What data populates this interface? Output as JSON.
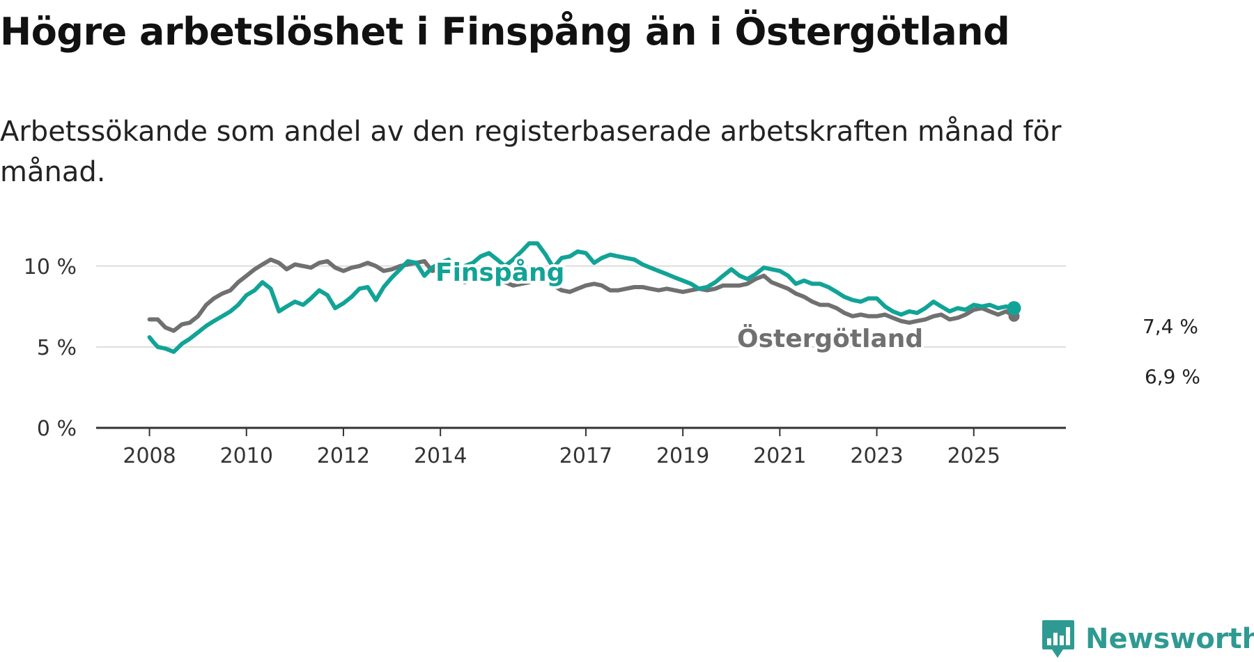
{
  "title": "Högre arbetslöshet i Finspång än i Östergötland",
  "subtitle": "Arbetssökande som andel av den registerbaserade arbetskraften månad för månad.",
  "brand": "Newsworthy",
  "colors": {
    "finspang": "#12a397",
    "ostergotland": "#707070",
    "grid": "#dddddd",
    "axis": "#333333",
    "brand": "#2f9a92"
  },
  "chart_data": {
    "type": "line",
    "title": "Högre arbetslöshet i Finspång än i Östergötland",
    "xlabel": "",
    "ylabel": "",
    "x_ticks": [
      {
        "value": 2008,
        "label": "2008"
      },
      {
        "value": 2010,
        "label": "2010"
      },
      {
        "value": 2012,
        "label": "2012"
      },
      {
        "value": 2014,
        "label": "2014"
      },
      {
        "value": 2017,
        "label": "2017"
      },
      {
        "value": 2019,
        "label": "2019"
      },
      {
        "value": 2021,
        "label": "2021"
      },
      {
        "value": 2023,
        "label": "2023"
      },
      {
        "value": 2025,
        "label": "2025"
      }
    ],
    "y_ticks": [
      {
        "value": 0,
        "label": "0 %"
      },
      {
        "value": 5,
        "label": "5 %"
      },
      {
        "value": 10,
        "label": "10 %"
      }
    ],
    "xlim": [
      2006.9,
      2026.9
    ],
    "ylim": [
      0,
      11.8
    ],
    "grid": true,
    "series": [
      {
        "name": "Östergötland",
        "key": "ostergotland",
        "points": [
          [
            2008.0,
            6.7
          ],
          [
            2008.17,
            6.7
          ],
          [
            2008.33,
            6.2
          ],
          [
            2008.5,
            6.0
          ],
          [
            2008.67,
            6.4
          ],
          [
            2008.83,
            6.5
          ],
          [
            2009.0,
            6.9
          ],
          [
            2009.17,
            7.6
          ],
          [
            2009.33,
            8.0
          ],
          [
            2009.5,
            8.3
          ],
          [
            2009.67,
            8.5
          ],
          [
            2009.83,
            9.0
          ],
          [
            2010.0,
            9.4
          ],
          [
            2010.17,
            9.8
          ],
          [
            2010.33,
            10.1
          ],
          [
            2010.5,
            10.4
          ],
          [
            2010.67,
            10.2
          ],
          [
            2010.83,
            9.8
          ],
          [
            2011.0,
            10.1
          ],
          [
            2011.17,
            10.0
          ],
          [
            2011.33,
            9.9
          ],
          [
            2011.5,
            10.2
          ],
          [
            2011.67,
            10.3
          ],
          [
            2011.83,
            9.9
          ],
          [
            2012.0,
            9.7
          ],
          [
            2012.17,
            9.9
          ],
          [
            2012.33,
            10.0
          ],
          [
            2012.5,
            10.2
          ],
          [
            2012.67,
            10.0
          ],
          [
            2012.83,
            9.7
          ],
          [
            2013.0,
            9.8
          ],
          [
            2013.17,
            10.0
          ],
          [
            2013.33,
            10.1
          ],
          [
            2013.5,
            10.2
          ],
          [
            2013.67,
            10.3
          ],
          [
            2013.83,
            9.7
          ],
          [
            2014.0,
            9.8
          ],
          [
            2014.17,
            9.9
          ],
          [
            2014.33,
            9.4
          ],
          [
            2014.5,
            9.0
          ],
          [
            2014.67,
            9.2
          ],
          [
            2014.83,
            9.3
          ],
          [
            2015.0,
            9.5
          ],
          [
            2015.17,
            9.3
          ],
          [
            2015.33,
            9.0
          ],
          [
            2015.5,
            8.8
          ],
          [
            2015.67,
            8.9
          ],
          [
            2015.83,
            9.0
          ],
          [
            2016.0,
            9.2
          ],
          [
            2016.17,
            9.3
          ],
          [
            2016.33,
            8.8
          ],
          [
            2016.5,
            8.5
          ],
          [
            2016.67,
            8.4
          ],
          [
            2016.83,
            8.6
          ],
          [
            2017.0,
            8.8
          ],
          [
            2017.17,
            8.9
          ],
          [
            2017.33,
            8.8
          ],
          [
            2017.5,
            8.5
          ],
          [
            2017.67,
            8.5
          ],
          [
            2017.83,
            8.6
          ],
          [
            2018.0,
            8.7
          ],
          [
            2018.17,
            8.7
          ],
          [
            2018.33,
            8.6
          ],
          [
            2018.5,
            8.5
          ],
          [
            2018.67,
            8.6
          ],
          [
            2018.83,
            8.5
          ],
          [
            2019.0,
            8.4
          ],
          [
            2019.17,
            8.5
          ],
          [
            2019.33,
            8.6
          ],
          [
            2019.5,
            8.5
          ],
          [
            2019.67,
            8.6
          ],
          [
            2019.83,
            8.8
          ],
          [
            2020.0,
            8.8
          ],
          [
            2020.17,
            8.8
          ],
          [
            2020.33,
            8.9
          ],
          [
            2020.5,
            9.2
          ],
          [
            2020.67,
            9.4
          ],
          [
            2020.83,
            9.0
          ],
          [
            2021.0,
            8.8
          ],
          [
            2021.17,
            8.6
          ],
          [
            2021.33,
            8.3
          ],
          [
            2021.5,
            8.1
          ],
          [
            2021.67,
            7.8
          ],
          [
            2021.83,
            7.6
          ],
          [
            2022.0,
            7.6
          ],
          [
            2022.17,
            7.4
          ],
          [
            2022.33,
            7.1
          ],
          [
            2022.5,
            6.9
          ],
          [
            2022.67,
            7.0
          ],
          [
            2022.83,
            6.9
          ],
          [
            2023.0,
            6.9
          ],
          [
            2023.17,
            7.0
          ],
          [
            2023.33,
            6.8
          ],
          [
            2023.5,
            6.6
          ],
          [
            2023.67,
            6.5
          ],
          [
            2023.83,
            6.6
          ],
          [
            2024.0,
            6.7
          ],
          [
            2024.17,
            6.9
          ],
          [
            2024.33,
            7.0
          ],
          [
            2024.5,
            6.7
          ],
          [
            2024.67,
            6.8
          ],
          [
            2024.83,
            7.0
          ],
          [
            2025.0,
            7.3
          ],
          [
            2025.17,
            7.4
          ],
          [
            2025.33,
            7.2
          ],
          [
            2025.5,
            7.0
          ],
          [
            2025.67,
            7.2
          ],
          [
            2025.83,
            6.9
          ]
        ]
      },
      {
        "name": "Finspång",
        "key": "finspang",
        "points": [
          [
            2008.0,
            5.6
          ],
          [
            2008.08,
            5.3
          ],
          [
            2008.17,
            5.0
          ],
          [
            2008.33,
            4.9
          ],
          [
            2008.5,
            4.7
          ],
          [
            2008.67,
            5.2
          ],
          [
            2008.83,
            5.5
          ],
          [
            2009.0,
            5.9
          ],
          [
            2009.17,
            6.3
          ],
          [
            2009.33,
            6.6
          ],
          [
            2009.5,
            6.9
          ],
          [
            2009.67,
            7.2
          ],
          [
            2009.83,
            7.6
          ],
          [
            2010.0,
            8.2
          ],
          [
            2010.17,
            8.5
          ],
          [
            2010.33,
            9.0
          ],
          [
            2010.5,
            8.6
          ],
          [
            2010.67,
            7.2
          ],
          [
            2010.83,
            7.5
          ],
          [
            2011.0,
            7.8
          ],
          [
            2011.17,
            7.6
          ],
          [
            2011.33,
            8.0
          ],
          [
            2011.5,
            8.5
          ],
          [
            2011.67,
            8.2
          ],
          [
            2011.83,
            7.4
          ],
          [
            2012.0,
            7.7
          ],
          [
            2012.17,
            8.1
          ],
          [
            2012.33,
            8.6
          ],
          [
            2012.5,
            8.7
          ],
          [
            2012.67,
            7.9
          ],
          [
            2012.83,
            8.7
          ],
          [
            2013.0,
            9.3
          ],
          [
            2013.17,
            9.8
          ],
          [
            2013.33,
            10.3
          ],
          [
            2013.5,
            10.2
          ],
          [
            2013.67,
            9.4
          ],
          [
            2013.83,
            9.9
          ],
          [
            2014.0,
            10.2
          ],
          [
            2014.17,
            10.4
          ],
          [
            2014.33,
            9.7
          ],
          [
            2014.5,
            10.0
          ],
          [
            2014.67,
            10.2
          ],
          [
            2014.83,
            10.6
          ],
          [
            2015.0,
            10.8
          ],
          [
            2015.17,
            10.4
          ],
          [
            2015.33,
            10.0
          ],
          [
            2015.5,
            10.4
          ],
          [
            2015.67,
            10.9
          ],
          [
            2015.83,
            11.4
          ],
          [
            2016.0,
            11.4
          ],
          [
            2016.17,
            10.7
          ],
          [
            2016.33,
            9.9
          ],
          [
            2016.5,
            10.5
          ],
          [
            2016.67,
            10.6
          ],
          [
            2016.83,
            10.9
          ],
          [
            2017.0,
            10.8
          ],
          [
            2017.17,
            10.2
          ],
          [
            2017.33,
            10.5
          ],
          [
            2017.5,
            10.7
          ],
          [
            2017.67,
            10.6
          ],
          [
            2017.83,
            10.5
          ],
          [
            2018.0,
            10.4
          ],
          [
            2018.17,
            10.1
          ],
          [
            2018.33,
            9.9
          ],
          [
            2018.5,
            9.7
          ],
          [
            2018.67,
            9.5
          ],
          [
            2018.83,
            9.3
          ],
          [
            2019.0,
            9.1
          ],
          [
            2019.17,
            8.9
          ],
          [
            2019.33,
            8.6
          ],
          [
            2019.5,
            8.7
          ],
          [
            2019.67,
            9.0
          ],
          [
            2019.83,
            9.4
          ],
          [
            2020.0,
            9.8
          ],
          [
            2020.17,
            9.4
          ],
          [
            2020.33,
            9.2
          ],
          [
            2020.5,
            9.5
          ],
          [
            2020.67,
            9.9
          ],
          [
            2020.83,
            9.8
          ],
          [
            2021.0,
            9.7
          ],
          [
            2021.17,
            9.4
          ],
          [
            2021.33,
            8.9
          ],
          [
            2021.5,
            9.1
          ],
          [
            2021.67,
            8.9
          ],
          [
            2021.83,
            8.9
          ],
          [
            2022.0,
            8.7
          ],
          [
            2022.17,
            8.4
          ],
          [
            2022.33,
            8.1
          ],
          [
            2022.5,
            7.9
          ],
          [
            2022.67,
            7.8
          ],
          [
            2022.83,
            8.0
          ],
          [
            2023.0,
            8.0
          ],
          [
            2023.17,
            7.5
          ],
          [
            2023.33,
            7.2
          ],
          [
            2023.5,
            7.0
          ],
          [
            2023.67,
            7.2
          ],
          [
            2023.83,
            7.1
          ],
          [
            2024.0,
            7.4
          ],
          [
            2024.17,
            7.8
          ],
          [
            2024.33,
            7.5
          ],
          [
            2024.5,
            7.2
          ],
          [
            2024.67,
            7.4
          ],
          [
            2024.83,
            7.3
          ],
          [
            2025.0,
            7.6
          ],
          [
            2025.17,
            7.5
          ],
          [
            2025.33,
            7.6
          ],
          [
            2025.5,
            7.4
          ],
          [
            2025.67,
            7.5
          ],
          [
            2025.83,
            7.4
          ]
        ]
      }
    ],
    "series_labels": [
      {
        "series": "Finspång",
        "text": "Finspång"
      },
      {
        "series": "Östergötland",
        "text": "Östergötland"
      }
    ],
    "end_labels": [
      {
        "series": "Finspång",
        "text": "7,4 %",
        "value": 7.4
      },
      {
        "series": "Östergötland",
        "text": "6,9 %",
        "value": 6.9
      }
    ]
  }
}
